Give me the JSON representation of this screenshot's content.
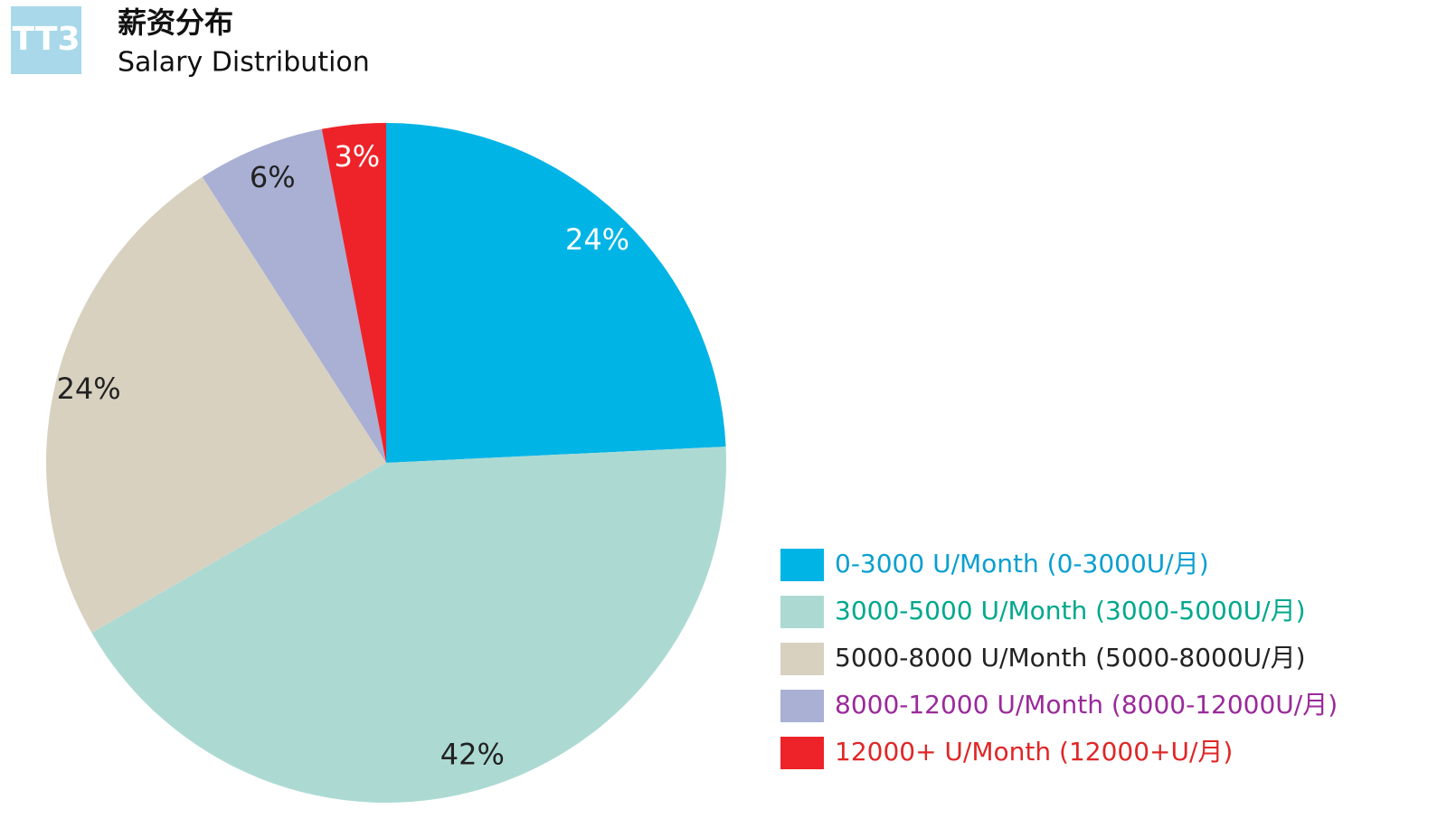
{
  "logo": "TT3",
  "chart_data": {
    "type": "pie",
    "title": "薪资分布",
    "subtitle": "Salary Distribution",
    "categories": [
      "0-3000 U/Month (0-3000U/月)",
      "3000-5000 U/Month (3000-5000U/月)",
      "5000-8000 U/Month (5000-8000U/月)",
      "8000-12000 U/Month (8000-12000U/月)",
      "12000+ U/Month (12000+U/月)"
    ],
    "values": [
      24,
      42,
      24,
      6,
      3
    ],
    "value_labels": [
      "24%",
      "42%",
      "24%",
      "6%",
      "3%"
    ],
    "colors": [
      "#00b4e6",
      "#acdad3",
      "#d8d1c0",
      "#a9b0d4",
      "#ee2329"
    ],
    "value_label_colors": [
      "#ffffff",
      "#222222",
      "#222222",
      "#222222",
      "#ffffff"
    ],
    "legend_text_colors": [
      "#0a9fd0",
      "#00a88c",
      "#222222",
      "#9a2a9a",
      "#e02626"
    ],
    "legend": "bottom-right"
  }
}
